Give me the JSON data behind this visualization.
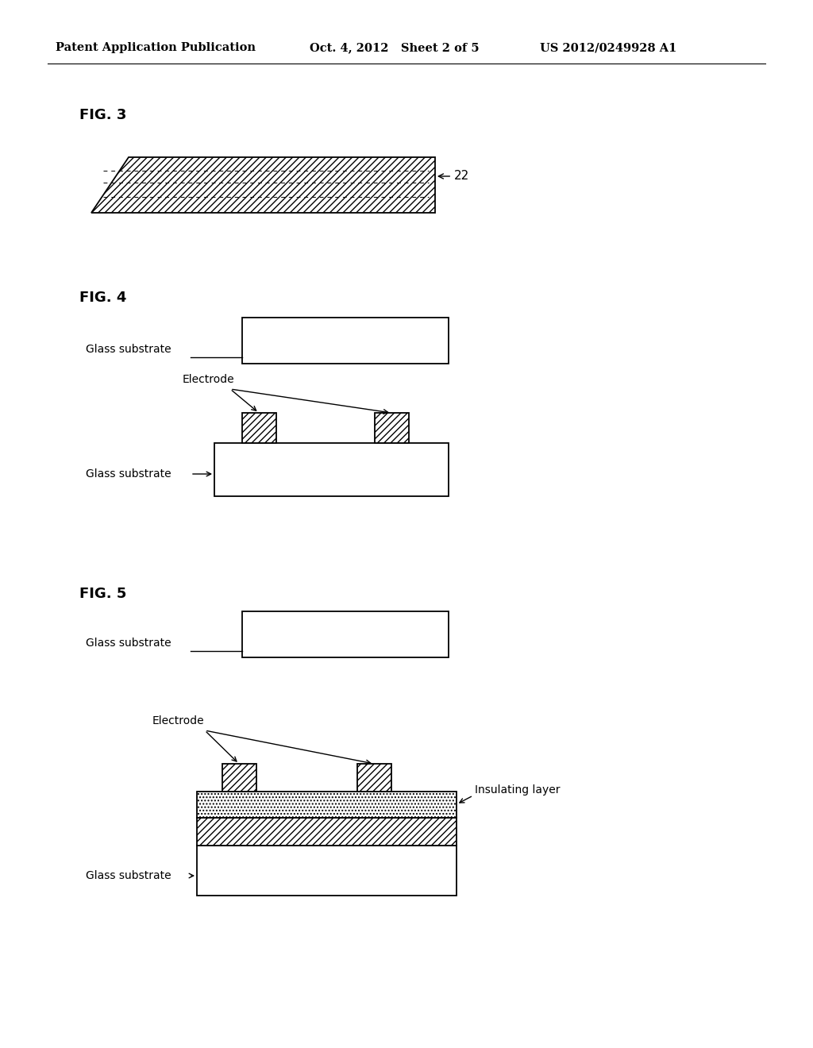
{
  "header_left": "Patent Application Publication",
  "header_mid": "Oct. 4, 2012   Sheet 2 of 5",
  "header_right": "US 2012/0249928 A1",
  "fig3_label": "FIG. 3",
  "fig4_label": "FIG. 4",
  "fig5_label": "FIG. 5",
  "label_22": "22",
  "label_electrode": "Electrode",
  "label_glass_sub": "Glass substrate",
  "label_insulating": "Insulating layer",
  "bg_color": "#ffffff",
  "line_color": "#000000"
}
